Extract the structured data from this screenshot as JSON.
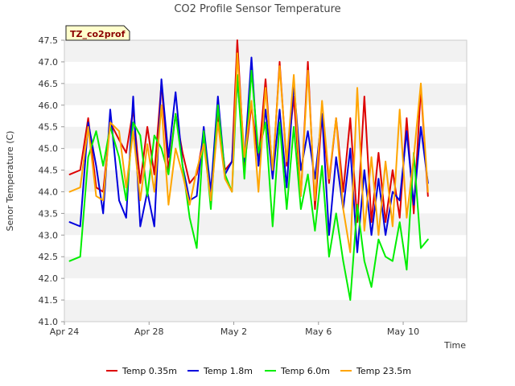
{
  "chart_data": {
    "type": "line",
    "title": "CO2 Profile Sensor Temperature",
    "xlabel": "Time",
    "ylabel": "Senor Temperature (C)",
    "site_tag": "TZ_co2prof",
    "ylim": [
      41.0,
      47.5
    ],
    "y_ticks": [
      "41.0",
      "41.5",
      "42.0",
      "42.5",
      "43.0",
      "43.5",
      "44.0",
      "44.5",
      "45.0",
      "45.5",
      "46.0",
      "46.5",
      "47.0",
      "47.5"
    ],
    "x_range": [
      "2024-04-24",
      "2024-05-13"
    ],
    "x_ticks": [
      {
        "date": "2024-04-24",
        "label": "Apr 24"
      },
      {
        "date": "2024-04-28",
        "label": "Apr 28"
      },
      {
        "date": "2024-05-02",
        "label": "May 2"
      },
      {
        "date": "2024-05-06",
        "label": "May 6"
      },
      {
        "date": "2024-05-10",
        "label": "May 10"
      }
    ],
    "grid": "horizontal alternating bands",
    "legend_position": "bottom",
    "series": [
      {
        "name": "Temp 0.35m",
        "color": "#dd0000",
        "points": [
          [
            "2024-04-24T06:00",
            44.4
          ],
          [
            "2024-04-24T18:00",
            44.5
          ],
          [
            "2024-04-25T03:00",
            45.7
          ],
          [
            "2024-04-25T12:00",
            44.1
          ],
          [
            "2024-04-25T20:00",
            44.0
          ],
          [
            "2024-04-26T04:00",
            45.6
          ],
          [
            "2024-04-26T14:00",
            45.2
          ],
          [
            "2024-04-26T22:00",
            44.9
          ],
          [
            "2024-04-27T06:00",
            45.9
          ],
          [
            "2024-04-27T14:00",
            44.2
          ],
          [
            "2024-04-27T22:00",
            45.5
          ],
          [
            "2024-04-28T06:00",
            44.4
          ],
          [
            "2024-04-28T14:00",
            46.5
          ],
          [
            "2024-04-28T22:00",
            44.5
          ],
          [
            "2024-04-29T06:00",
            45.8
          ],
          [
            "2024-04-29T14:00",
            44.9
          ],
          [
            "2024-04-29T22:00",
            44.2
          ],
          [
            "2024-04-30T06:00",
            44.4
          ],
          [
            "2024-04-30T14:00",
            45.3
          ],
          [
            "2024-04-30T22:00",
            44.0
          ],
          [
            "2024-05-01T06:00",
            45.8
          ],
          [
            "2024-05-01T14:00",
            44.5
          ],
          [
            "2024-05-01T22:00",
            44.7
          ],
          [
            "2024-05-02T04:00",
            47.5
          ],
          [
            "2024-05-02T12:00",
            44.6
          ],
          [
            "2024-05-02T20:00",
            46.0
          ],
          [
            "2024-05-03T04:00",
            44.7
          ],
          [
            "2024-05-03T12:00",
            46.6
          ],
          [
            "2024-05-03T20:00",
            44.4
          ],
          [
            "2024-05-04T04:00",
            47.0
          ],
          [
            "2024-05-04T12:00",
            44.6
          ],
          [
            "2024-05-04T20:00",
            46.2
          ],
          [
            "2024-05-05T04:00",
            43.9
          ],
          [
            "2024-05-05T12:00",
            47.0
          ],
          [
            "2024-05-05T20:00",
            43.6
          ],
          [
            "2024-05-06T04:00",
            45.8
          ],
          [
            "2024-05-06T12:00",
            44.2
          ],
          [
            "2024-05-06T20:00",
            45.7
          ],
          [
            "2024-05-07T04:00",
            44.0
          ],
          [
            "2024-05-07T12:00",
            45.7
          ],
          [
            "2024-05-07T20:00",
            43.3
          ],
          [
            "2024-05-08T04:00",
            46.2
          ],
          [
            "2024-05-08T12:00",
            43.3
          ],
          [
            "2024-05-08T20:00",
            44.9
          ],
          [
            "2024-05-09T04:00",
            43.3
          ],
          [
            "2024-05-09T12:00",
            44.5
          ],
          [
            "2024-05-09T20:00",
            43.4
          ],
          [
            "2024-05-10T04:00",
            45.7
          ],
          [
            "2024-05-10T12:00",
            43.5
          ],
          [
            "2024-05-10T20:00",
            46.4
          ],
          [
            "2024-05-11T04:00",
            43.9
          ]
        ]
      },
      {
        "name": "Temp 1.8m",
        "color": "#0000dd",
        "points": [
          [
            "2024-04-24T06:00",
            43.3
          ],
          [
            "2024-04-24T18:00",
            43.2
          ],
          [
            "2024-04-25T03:00",
            45.6
          ],
          [
            "2024-04-25T12:00",
            44.6
          ],
          [
            "2024-04-25T20:00",
            43.5
          ],
          [
            "2024-04-26T04:00",
            45.9
          ],
          [
            "2024-04-26T14:00",
            43.8
          ],
          [
            "2024-04-26T22:00",
            43.4
          ],
          [
            "2024-04-27T06:00",
            46.2
          ],
          [
            "2024-04-27T14:00",
            43.2
          ],
          [
            "2024-04-27T22:00",
            44.0
          ],
          [
            "2024-04-28T06:00",
            43.2
          ],
          [
            "2024-04-28T14:00",
            46.6
          ],
          [
            "2024-04-28T22:00",
            44.8
          ],
          [
            "2024-04-29T06:00",
            46.3
          ],
          [
            "2024-04-29T14:00",
            44.6
          ],
          [
            "2024-04-29T22:00",
            43.8
          ],
          [
            "2024-04-30T06:00",
            43.9
          ],
          [
            "2024-04-30T14:00",
            45.5
          ],
          [
            "2024-04-30T22:00",
            44.0
          ],
          [
            "2024-05-01T06:00",
            46.2
          ],
          [
            "2024-05-01T14:00",
            44.4
          ],
          [
            "2024-05-01T22:00",
            44.7
          ],
          [
            "2024-05-02T04:00",
            46.6
          ],
          [
            "2024-05-02T12:00",
            44.7
          ],
          [
            "2024-05-02T20:00",
            47.1
          ],
          [
            "2024-05-03T04:00",
            44.6
          ],
          [
            "2024-05-03T12:00",
            45.9
          ],
          [
            "2024-05-03T20:00",
            44.3
          ],
          [
            "2024-05-04T04:00",
            45.9
          ],
          [
            "2024-05-04T12:00",
            44.1
          ],
          [
            "2024-05-04T20:00",
            46.5
          ],
          [
            "2024-05-05T04:00",
            44.5
          ],
          [
            "2024-05-05T12:00",
            45.4
          ],
          [
            "2024-05-05T20:00",
            44.3
          ],
          [
            "2024-05-06T04:00",
            45.8
          ],
          [
            "2024-05-06T12:00",
            43.0
          ],
          [
            "2024-05-06T20:00",
            44.8
          ],
          [
            "2024-05-07T04:00",
            43.6
          ],
          [
            "2024-05-07T12:00",
            45.0
          ],
          [
            "2024-05-07T20:00",
            42.6
          ],
          [
            "2024-05-08T04:00",
            44.5
          ],
          [
            "2024-05-08T12:00",
            43.0
          ],
          [
            "2024-05-08T20:00",
            44.3
          ],
          [
            "2024-05-09T04:00",
            43.0
          ],
          [
            "2024-05-09T12:00",
            44.0
          ],
          [
            "2024-05-09T20:00",
            43.8
          ],
          [
            "2024-05-10T04:00",
            45.4
          ],
          [
            "2024-05-10T12:00",
            43.7
          ],
          [
            "2024-05-10T20:00",
            45.5
          ],
          [
            "2024-05-11T04:00",
            44.2
          ]
        ]
      },
      {
        "name": "Temp 6.0m",
        "color": "#00ee00",
        "points": [
          [
            "2024-04-24T06:00",
            42.4
          ],
          [
            "2024-04-24T18:00",
            42.5
          ],
          [
            "2024-04-25T03:00",
            44.8
          ],
          [
            "2024-04-25T12:00",
            45.4
          ],
          [
            "2024-04-25T20:00",
            44.6
          ],
          [
            "2024-04-26T04:00",
            45.5
          ],
          [
            "2024-04-26T14:00",
            44.8
          ],
          [
            "2024-04-26T22:00",
            43.8
          ],
          [
            "2024-04-27T06:00",
            45.6
          ],
          [
            "2024-04-27T14:00",
            45.3
          ],
          [
            "2024-04-27T22:00",
            43.9
          ],
          [
            "2024-04-28T06:00",
            45.3
          ],
          [
            "2024-04-28T14:00",
            45.0
          ],
          [
            "2024-04-28T22:00",
            44.4
          ],
          [
            "2024-04-29T06:00",
            45.8
          ],
          [
            "2024-04-29T14:00",
            44.6
          ],
          [
            "2024-04-29T22:00",
            43.4
          ],
          [
            "2024-04-30T06:00",
            42.7
          ],
          [
            "2024-04-30T14:00",
            45.4
          ],
          [
            "2024-04-30T22:00",
            43.6
          ],
          [
            "2024-05-01T06:00",
            46.0
          ],
          [
            "2024-05-01T14:00",
            44.4
          ],
          [
            "2024-05-01T22:00",
            44.0
          ],
          [
            "2024-05-02T04:00",
            46.7
          ],
          [
            "2024-05-02T12:00",
            44.3
          ],
          [
            "2024-05-02T20:00",
            46.8
          ],
          [
            "2024-05-03T04:00",
            44.9
          ],
          [
            "2024-05-03T12:00",
            45.6
          ],
          [
            "2024-05-03T20:00",
            43.2
          ],
          [
            "2024-05-04T04:00",
            45.6
          ],
          [
            "2024-05-04T12:00",
            43.6
          ],
          [
            "2024-05-04T20:00",
            45.5
          ],
          [
            "2024-05-05T04:00",
            43.6
          ],
          [
            "2024-05-05T12:00",
            44.4
          ],
          [
            "2024-05-05T20:00",
            43.1
          ],
          [
            "2024-05-06T04:00",
            44.6
          ],
          [
            "2024-05-06T12:00",
            42.5
          ],
          [
            "2024-05-06T20:00",
            43.5
          ],
          [
            "2024-05-07T04:00",
            42.4
          ],
          [
            "2024-05-07T12:00",
            41.5
          ],
          [
            "2024-05-07T20:00",
            43.7
          ],
          [
            "2024-05-08T04:00",
            42.4
          ],
          [
            "2024-05-08T12:00",
            41.8
          ],
          [
            "2024-05-08T20:00",
            42.9
          ],
          [
            "2024-05-09T04:00",
            42.5
          ],
          [
            "2024-05-09T12:00",
            42.4
          ],
          [
            "2024-05-09T20:00",
            43.3
          ],
          [
            "2024-05-10T04:00",
            42.2
          ],
          [
            "2024-05-10T12:00",
            44.9
          ],
          [
            "2024-05-10T20:00",
            42.7
          ],
          [
            "2024-05-11T04:00",
            42.9
          ]
        ]
      },
      {
        "name": "Temp 23.5m",
        "color": "#ffa500",
        "points": [
          [
            "2024-04-24T06:00",
            44.0
          ],
          [
            "2024-04-24T18:00",
            44.1
          ],
          [
            "2024-04-25T03:00",
            45.5
          ],
          [
            "2024-04-25T12:00",
            43.9
          ],
          [
            "2024-04-25T20:00",
            43.8
          ],
          [
            "2024-04-26T04:00",
            45.6
          ],
          [
            "2024-04-26T14:00",
            45.4
          ],
          [
            "2024-04-26T22:00",
            44.1
          ],
          [
            "2024-04-27T06:00",
            45.4
          ],
          [
            "2024-04-27T14:00",
            43.8
          ],
          [
            "2024-04-27T22:00",
            45.1
          ],
          [
            "2024-04-28T06:00",
            44.0
          ],
          [
            "2024-04-28T14:00",
            46.0
          ],
          [
            "2024-04-28T22:00",
            43.7
          ],
          [
            "2024-04-29T06:00",
            45.0
          ],
          [
            "2024-04-29T14:00",
            44.4
          ],
          [
            "2024-04-29T22:00",
            43.7
          ],
          [
            "2024-04-30T06:00",
            44.5
          ],
          [
            "2024-04-30T14:00",
            45.1
          ],
          [
            "2024-04-30T22:00",
            43.8
          ],
          [
            "2024-05-01T06:00",
            45.6
          ],
          [
            "2024-05-01T14:00",
            44.3
          ],
          [
            "2024-05-01T22:00",
            44.0
          ],
          [
            "2024-05-02T04:00",
            47.2
          ],
          [
            "2024-05-02T12:00",
            44.8
          ],
          [
            "2024-05-02T20:00",
            46.1
          ],
          [
            "2024-05-03T04:00",
            44.0
          ],
          [
            "2024-05-03T12:00",
            46.4
          ],
          [
            "2024-05-03T20:00",
            44.5
          ],
          [
            "2024-05-04T04:00",
            46.9
          ],
          [
            "2024-05-04T12:00",
            44.7
          ],
          [
            "2024-05-04T20:00",
            46.7
          ],
          [
            "2024-05-05T04:00",
            43.9
          ],
          [
            "2024-05-05T12:00",
            46.8
          ],
          [
            "2024-05-05T20:00",
            43.8
          ],
          [
            "2024-05-06T04:00",
            46.1
          ],
          [
            "2024-05-06T12:00",
            44.3
          ],
          [
            "2024-05-06T20:00",
            45.7
          ],
          [
            "2024-05-07T04:00",
            43.6
          ],
          [
            "2024-05-07T12:00",
            42.6
          ],
          [
            "2024-05-07T20:00",
            46.4
          ],
          [
            "2024-05-08T04:00",
            43.1
          ],
          [
            "2024-05-08T12:00",
            44.8
          ],
          [
            "2024-05-08T20:00",
            43.0
          ],
          [
            "2024-05-09T04:00",
            44.7
          ],
          [
            "2024-05-09T12:00",
            43.2
          ],
          [
            "2024-05-09T20:00",
            45.9
          ],
          [
            "2024-05-10T04:00",
            43.4
          ],
          [
            "2024-05-10T12:00",
            44.8
          ],
          [
            "2024-05-10T20:00",
            46.5
          ],
          [
            "2024-05-11T04:00",
            44.0
          ]
        ]
      }
    ]
  }
}
